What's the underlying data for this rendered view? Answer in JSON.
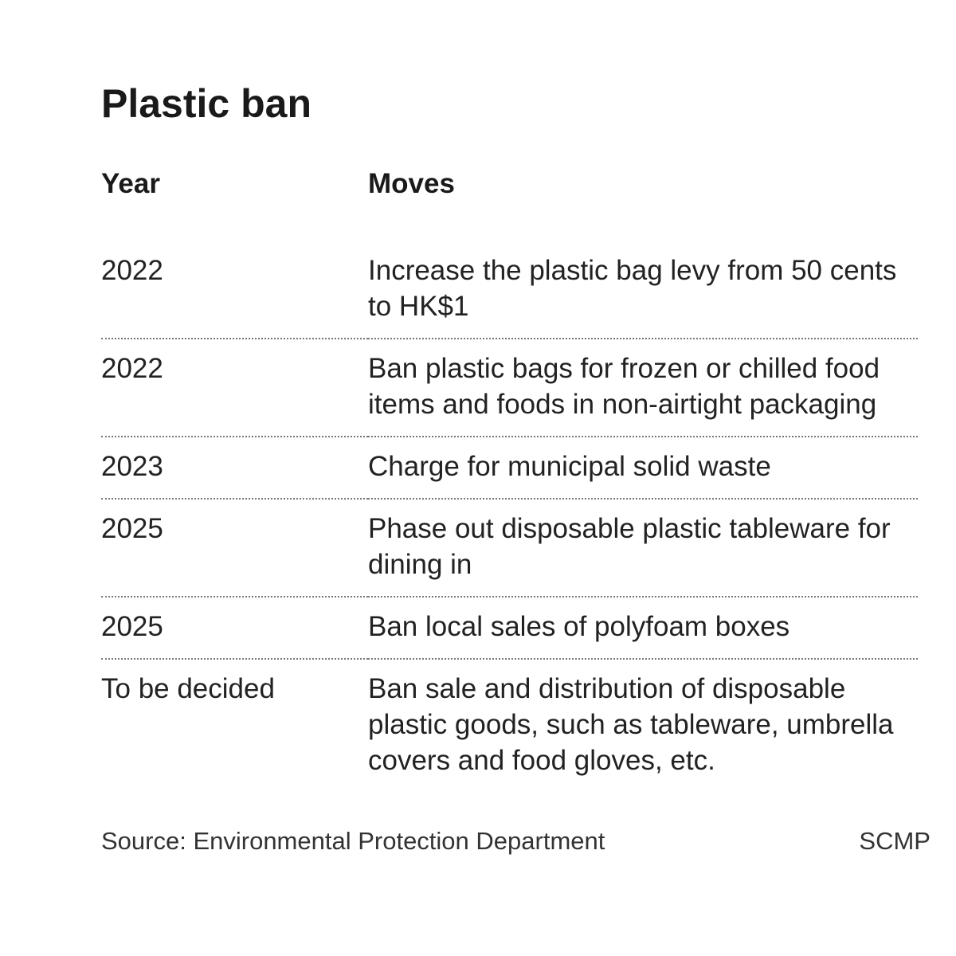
{
  "header": {
    "title": "Plastic ban"
  },
  "table": {
    "columns": [
      "Year",
      "Moves"
    ],
    "rows": [
      [
        "2022",
        "Increase the plastic bag levy from 50 cents to HK$1"
      ],
      [
        "2022",
        "Ban plastic bags for frozen or chilled food items and foods in non-airtight packaging"
      ],
      [
        "2023",
        "Charge for municipal solid waste"
      ],
      [
        "2025",
        "Phase out disposable plastic tableware for dining in"
      ],
      [
        "2025",
        "Ban local sales of polyfoam boxes"
      ],
      [
        "To be decided",
        "Ban sale and distribution of disposable plastic goods, such as tableware, umbrella covers and food gloves, etc."
      ]
    ]
  },
  "footer": {
    "source": "Source: Environmental Protection Department",
    "credit": "SCMP"
  }
}
